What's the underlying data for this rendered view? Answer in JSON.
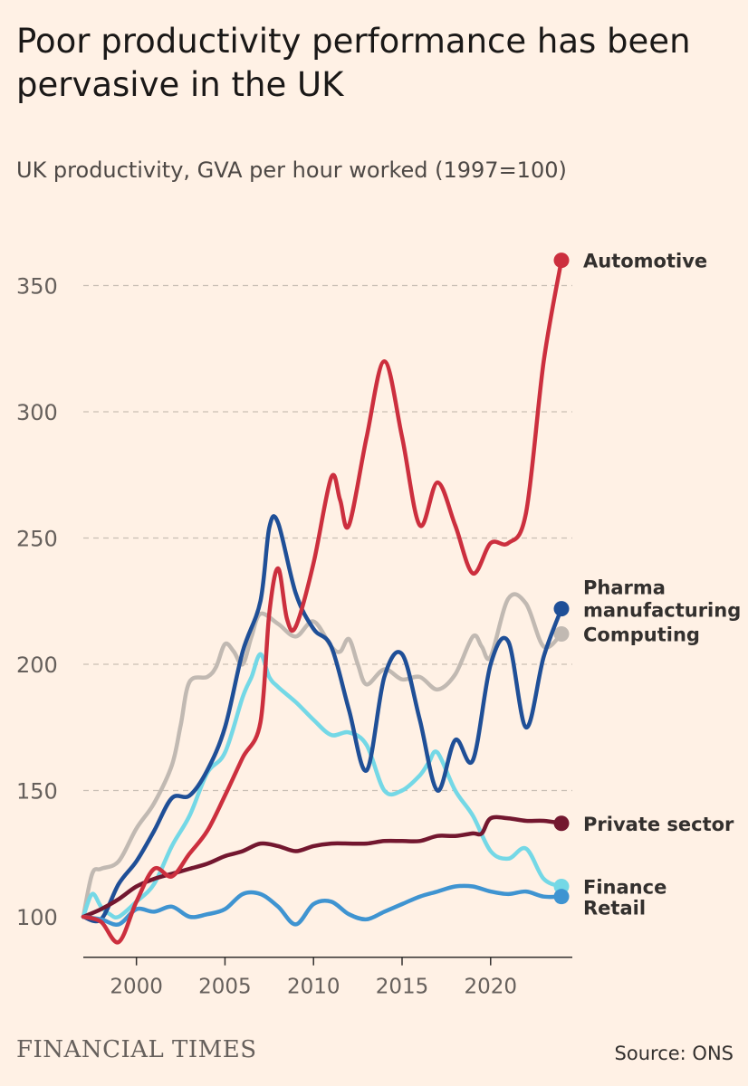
{
  "title": "Poor productivity performance has been pervasive in the UK",
  "subtitle": "UK productivity, GVA per hour worked (1997=100)",
  "brand": "FINANCIAL TIMES",
  "source": "Source: ONS",
  "chart_data": {
    "type": "line",
    "title": "Poor productivity performance has been pervasive in the UK",
    "ylabel": "UK productivity, GVA per hour worked (1997=100)",
    "xlim": [
      1997,
      2024
    ],
    "ylim": [
      89,
      365
    ],
    "x_ticks": [
      2000,
      2005,
      2010,
      2015,
      2020
    ],
    "y_ticks": [
      100,
      150,
      200,
      250,
      300,
      350
    ],
    "grid": "horizontal dashed",
    "series": [
      {
        "name": "Computing",
        "color": "#c1b9b2",
        "label_lines": [
          "Computing"
        ],
        "x": [
          1997,
          1997.5,
          1998,
          1999,
          2000,
          2001,
          2002,
          2002.5,
          2003,
          2004,
          2004.5,
          2005,
          2005.5,
          2006,
          2006.5,
          2007,
          2008,
          2009,
          2010,
          2011,
          2011.5,
          2012,
          2012.5,
          2013,
          2014,
          2015,
          2016,
          2017,
          2018,
          2019,
          2019.5,
          2020,
          2021,
          2022,
          2023,
          2024
        ],
        "y": [
          100,
          117,
          119,
          122,
          135,
          145,
          160,
          176,
          193,
          195,
          199,
          208,
          205,
          200,
          211,
          220,
          216,
          211,
          217,
          207,
          205,
          210,
          200,
          192,
          198,
          194,
          195,
          190,
          196,
          211,
          207,
          203,
          226,
          224,
          207,
          212
        ]
      },
      {
        "name": "Finance",
        "color": "#74d8e6",
        "label_lines": [
          "Finance"
        ],
        "x": [
          1997,
          1997.5,
          1998,
          1998.5,
          1999,
          2000,
          2001,
          2002,
          2003,
          2004,
          2005,
          2006,
          2006.5,
          2007,
          2007.5,
          2008,
          2009,
          2010,
          2011,
          2012,
          2013,
          2014,
          2015,
          2016,
          2016.5,
          2017,
          2018,
          2019,
          2020,
          2021,
          2022,
          2023,
          2024
        ],
        "y": [
          100,
          109,
          104,
          101,
          100,
          106,
          113,
          128,
          140,
          157,
          165,
          187,
          195,
          204,
          195,
          191,
          185,
          178,
          172,
          173,
          168,
          150,
          150,
          156,
          161,
          165,
          150,
          140,
          126,
          123,
          127,
          115,
          112
        ]
      },
      {
        "name": "Pharma manufacturing",
        "color": "#1f4f97",
        "label_lines": [
          "Pharma",
          "manufacturing"
        ],
        "x": [
          1997,
          1998,
          1999,
          2000,
          2001,
          2002,
          2003,
          2004,
          2005,
          2006,
          2007,
          2007.5,
          2008,
          2009,
          2010,
          2011,
          2012,
          2013,
          2014,
          2015,
          2016,
          2017,
          2018,
          2019,
          2020,
          2021,
          2022,
          2023,
          2024
        ],
        "y": [
          100,
          99,
          113,
          122,
          134,
          147,
          148,
          158,
          175,
          205,
          225,
          254,
          256,
          228,
          214,
          207,
          182,
          158,
          195,
          204,
          178,
          150,
          170,
          162,
          200,
          209,
          175,
          203,
          222
        ]
      },
      {
        "name": "Private sector",
        "color": "#73172f",
        "label_lines": [
          "Private sector"
        ],
        "x": [
          1997,
          1998,
          1999,
          2000,
          2001,
          2002,
          2003,
          2004,
          2005,
          2006,
          2007,
          2008,
          2009,
          2010,
          2011,
          2012,
          2013,
          2014,
          2015,
          2016,
          2017,
          2018,
          2019,
          2019.5,
          2020,
          2021,
          2022,
          2023,
          2024
        ],
        "y": [
          100,
          103,
          107,
          112,
          115,
          117,
          119,
          121,
          124,
          126,
          129,
          128,
          126,
          128,
          129,
          129,
          129,
          130,
          130,
          130,
          132,
          132,
          133,
          133,
          139,
          139,
          138,
          138,
          137
        ]
      },
      {
        "name": "Retail",
        "color": "#3f94d1",
        "label_lines": [
          "Retail"
        ],
        "x": [
          1997,
          1998,
          1999,
          2000,
          2001,
          2002,
          2003,
          2004,
          2005,
          2006,
          2007,
          2008,
          2009,
          2010,
          2011,
          2012,
          2013,
          2014,
          2015,
          2016,
          2017,
          2018,
          2019,
          2020,
          2021,
          2022,
          2023,
          2024
        ],
        "y": [
          100,
          99,
          97,
          103,
          102,
          104,
          100,
          101,
          103,
          109,
          109,
          104,
          97,
          105,
          106,
          101,
          99,
          102,
          105,
          108,
          110,
          112,
          112,
          110,
          109,
          110,
          108,
          108
        ]
      },
      {
        "name": "Automotive",
        "color": "#cc2f3e",
        "label_lines": [
          "Automotive"
        ],
        "x": [
          1997,
          1998,
          1999,
          2000,
          2001,
          2002,
          2003,
          2004,
          2005,
          2006,
          2007,
          2007.5,
          2008,
          2008.5,
          2009,
          2010,
          2011,
          2011.5,
          2012,
          2013,
          2014,
          2015,
          2016,
          2017,
          2018,
          2019,
          2020,
          2021,
          2022,
          2023,
          2024
        ],
        "y": [
          100,
          98,
          90,
          106,
          119,
          116,
          125,
          134,
          148,
          163,
          177,
          220,
          238,
          218,
          215,
          240,
          274,
          265,
          255,
          290,
          320,
          290,
          255,
          272,
          255,
          236,
          248,
          248,
          260,
          320,
          360
        ]
      }
    ],
    "end_labels": [
      {
        "series": "Automotive",
        "label_value": 360
      },
      {
        "series": "Pharma manufacturing",
        "label_value": 222
      },
      {
        "series": "Computing",
        "label_value": 212
      },
      {
        "series": "Private sector",
        "label_value": 137
      },
      {
        "series": "Finance",
        "label_value": 112
      },
      {
        "series": "Retail",
        "label_value": 108
      }
    ]
  }
}
